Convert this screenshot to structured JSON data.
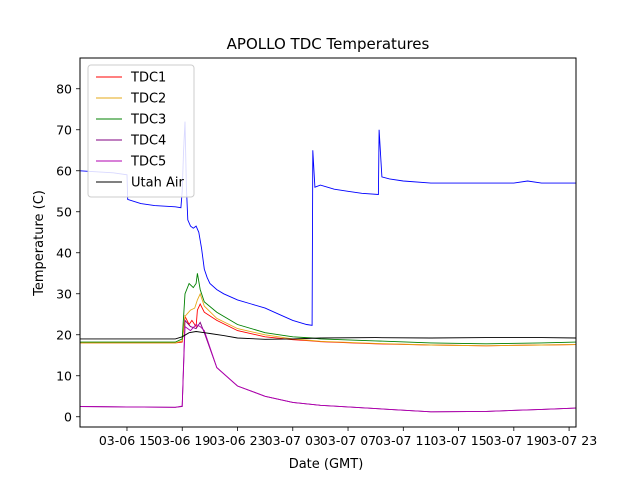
{
  "chart_data": {
    "type": "line",
    "title": "APOLLO TDC Temperatures",
    "xlabel": "Date (GMT)",
    "ylabel": "Temperature (C)",
    "xlim": [
      11.6,
      47.5
    ],
    "ylim": [
      -2.5,
      87.5
    ],
    "x_unit": "hours since 03-06 00:00 GMT",
    "xticks": [
      {
        "x": 15,
        "label": "03-06 15"
      },
      {
        "x": 19,
        "label": "03-06 19"
      },
      {
        "x": 23,
        "label": "03-06 23"
      },
      {
        "x": 27,
        "label": "03-07 03"
      },
      {
        "x": 31,
        "label": "03-07 07"
      },
      {
        "x": 35,
        "label": "03-07 11"
      },
      {
        "x": 39,
        "label": "03-07 15"
      },
      {
        "x": 43,
        "label": "03-07 19"
      },
      {
        "x": 47,
        "label": "03-07 23"
      }
    ],
    "yticks": [
      0,
      10,
      20,
      30,
      40,
      50,
      60,
      70,
      80
    ],
    "grid": false,
    "legend_position": "top-left",
    "series": [
      {
        "name": "TDC1",
        "color": "#ff0000",
        "x": [
          11.6,
          15.0,
          18.5,
          19.0,
          19.2,
          19.5,
          19.7,
          20.0,
          20.1,
          20.3,
          20.6,
          21.5,
          23.0,
          25.0,
          27.0,
          28.4,
          29.0,
          33.0,
          37.0,
          41.0,
          45.0,
          47.5
        ],
        "y": [
          18.0,
          18.0,
          18.0,
          18.2,
          24.5,
          22.5,
          23.5,
          22.0,
          26.0,
          27.5,
          25.5,
          23.5,
          21.0,
          19.5,
          18.8,
          18.5,
          18.3,
          17.8,
          17.5,
          17.3,
          17.5,
          17.6
        ]
      },
      {
        "name": "TDC2",
        "color": "#e6a817",
        "x": [
          11.6,
          15.0,
          18.5,
          19.0,
          19.2,
          19.6,
          19.9,
          20.1,
          20.3,
          20.6,
          21.5,
          23.0,
          25.0,
          27.0,
          28.4,
          29.0,
          33.0,
          37.0,
          41.0,
          45.0,
          47.5
        ],
        "y": [
          18.0,
          18.0,
          18.0,
          18.5,
          24.5,
          26.0,
          26.5,
          28.5,
          30.0,
          27.0,
          24.0,
          21.5,
          20.0,
          19.0,
          18.6,
          18.4,
          17.9,
          17.5,
          17.3,
          17.5,
          17.6
        ]
      },
      {
        "name": "TDC3",
        "color": "#008000",
        "x": [
          11.6,
          15.0,
          18.5,
          19.0,
          19.2,
          19.5,
          19.8,
          20.0,
          20.1,
          20.3,
          20.6,
          21.5,
          23.0,
          25.0,
          27.0,
          28.4,
          29.0,
          33.0,
          37.0,
          41.0,
          45.0,
          47.5
        ],
        "y": [
          18.2,
          18.2,
          18.2,
          19.0,
          30.0,
          32.5,
          31.5,
          32.5,
          35.0,
          31.0,
          28.0,
          25.5,
          22.5,
          20.5,
          19.5,
          19.2,
          19.0,
          18.5,
          18.0,
          17.8,
          18.0,
          18.2
        ]
      },
      {
        "name": "TDC4",
        "color": "#800080",
        "x": [
          11.6,
          15.0,
          18.5,
          19.0,
          19.2,
          19.6,
          20.0,
          20.3,
          20.6,
          21.5,
          23.0,
          25.0,
          27.0,
          28.4,
          29.0,
          33.0,
          37.0,
          41.0,
          45.0,
          47.5
        ],
        "y": [
          2.5,
          2.4,
          2.3,
          2.5,
          23.5,
          22.0,
          21.5,
          23.0,
          20.5,
          12.0,
          7.5,
          5.0,
          3.5,
          3.0,
          2.8,
          2.0,
          1.2,
          1.3,
          1.8,
          2.1
        ]
      },
      {
        "name": "TDC5",
        "color": "#b000b0",
        "x": [
          11.6,
          15.0,
          18.5,
          19.0,
          19.2,
          19.6,
          20.0,
          20.3,
          20.6,
          21.5,
          23.0,
          25.0,
          27.0,
          28.4,
          29.0,
          33.0,
          37.0,
          41.0,
          45.0,
          47.5
        ],
        "y": [
          2.5,
          2.4,
          2.3,
          2.6,
          22.0,
          21.0,
          22.5,
          22.0,
          21.0,
          12.0,
          7.5,
          5.0,
          3.5,
          3.0,
          2.8,
          2.0,
          1.2,
          1.3,
          1.8,
          2.1
        ]
      },
      {
        "name": "Utah Air",
        "color": "#000000",
        "x": [
          11.6,
          15.0,
          18.5,
          19.0,
          19.5,
          20.0,
          20.6,
          21.0,
          22.0,
          23.0,
          25.0,
          27.0,
          29.0,
          33.0,
          37.0,
          41.0,
          45.0,
          47.5
        ],
        "y": [
          19.0,
          19.0,
          19.0,
          19.5,
          20.5,
          20.8,
          20.5,
          20.3,
          19.8,
          19.2,
          18.9,
          19.0,
          19.2,
          19.3,
          19.2,
          19.3,
          19.3,
          19.2
        ]
      },
      {
        "name": "",
        "color": "#0000ff",
        "x": [
          11.6,
          14.0,
          15.0,
          15.05,
          16.0,
          17.0,
          18.5,
          18.9,
          19.0,
          19.1,
          19.2,
          19.3,
          19.4,
          19.6,
          19.8,
          20.0,
          20.2,
          20.4,
          20.6,
          20.8,
          21.0,
          21.5,
          22.0,
          23.0,
          24.0,
          25.0,
          26.0,
          27.0,
          28.0,
          28.4,
          28.45,
          28.6,
          29.0,
          30.0,
          31.0,
          32.0,
          33.2,
          33.25,
          33.45,
          34.0,
          35.0,
          37.0,
          39.0,
          41.0,
          43.0,
          44.0,
          45.0,
          47.5
        ],
        "y": [
          60.0,
          59.5,
          59.0,
          53.0,
          52.0,
          51.5,
          51.2,
          51.0,
          55.0,
          65.0,
          72.0,
          56.0,
          48.0,
          46.5,
          46.0,
          46.5,
          45.0,
          41.0,
          36.0,
          34.0,
          32.5,
          31.0,
          30.0,
          28.5,
          27.5,
          26.5,
          25.0,
          23.5,
          22.5,
          22.3,
          65.0,
          56.0,
          56.5,
          55.5,
          55.0,
          54.5,
          54.2,
          70.0,
          58.5,
          58.0,
          57.5,
          57.0,
          57.0,
          57.0,
          57.0,
          57.5,
          57.0,
          57.0
        ]
      }
    ]
  }
}
